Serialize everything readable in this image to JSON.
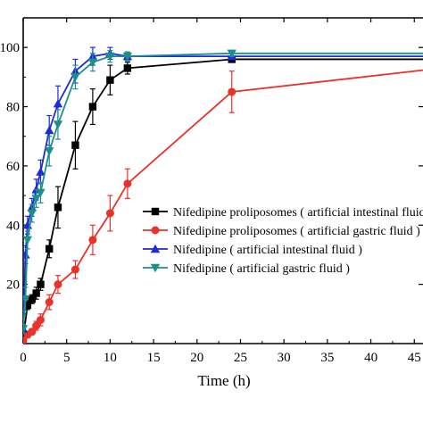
{
  "chart_data": {
    "type": "line",
    "xlabel": "Time (h)",
    "ylabel": "",
    "xlim": [
      0,
      46
    ],
    "ylim": [
      0,
      110
    ],
    "x_ticks": [
      "0",
      "5",
      "10",
      "15",
      "20",
      "25",
      "30",
      "35",
      "40",
      "45"
    ],
    "y_ticks": [
      "20",
      "40",
      "60",
      "80",
      "100"
    ],
    "y_tick_values": [
      20,
      40,
      60,
      80,
      100
    ],
    "x_tick_values": [
      0,
      5,
      10,
      15,
      20,
      25,
      30,
      35,
      40,
      45
    ],
    "legend_position": "center-right",
    "series": [
      {
        "name": "Nifedipine proliposomes ( artificial intestinal fluid )",
        "color": "#000000",
        "marker": "square",
        "x": [
          0,
          0.5,
          1,
          1.5,
          2,
          3,
          4,
          6,
          8,
          10,
          12,
          24,
          48
        ],
        "y": [
          2,
          13,
          15,
          17,
          20,
          32,
          46,
          67,
          80,
          89,
          93,
          96,
          96
        ],
        "err": [
          1,
          1.5,
          1.5,
          2,
          2,
          3,
          7,
          8,
          6,
          5,
          2,
          1,
          1
        ]
      },
      {
        "name": "Nifedipine proliposomes ( artificial gastric fluid )",
        "color": "#e8322a",
        "marker": "circle",
        "x": [
          0,
          0.5,
          1,
          1.5,
          2,
          3,
          4,
          6,
          8,
          10,
          12,
          24,
          48
        ],
        "y": [
          1,
          3,
          4,
          6,
          8,
          14,
          20,
          25,
          35,
          44,
          54,
          85,
          93
        ],
        "err": [
          0.5,
          1,
          1,
          1.5,
          2,
          2.5,
          3,
          3,
          5,
          6,
          5,
          7,
          1
        ]
      },
      {
        "name": "Nifedipine ( artificial intestinal fluid )",
        "color": "#1f2bd6",
        "marker": "triangle-up",
        "x": [
          0,
          0.25,
          0.5,
          1,
          1.5,
          2,
          3,
          4,
          6,
          8,
          10,
          12,
          24,
          48
        ],
        "y": [
          5,
          30,
          40,
          46,
          52,
          58,
          72,
          81,
          92,
          97,
          98,
          97,
          97,
          97
        ],
        "err": [
          1.5,
          3,
          3,
          3,
          3.5,
          4,
          5,
          6,
          4,
          3,
          2,
          1.5,
          1,
          1
        ]
      },
      {
        "name": "Nifedipine ( artificial gastric fluid )",
        "color": "#1d8f8a",
        "marker": "triangle-down",
        "x": [
          0,
          0.25,
          0.5,
          1,
          1.5,
          2,
          3,
          4,
          6,
          8,
          10,
          12,
          24,
          48
        ],
        "y": [
          5,
          15,
          35,
          44,
          49,
          51,
          65,
          74,
          90,
          95,
          97,
          97,
          98,
          98
        ],
        "err": [
          1.5,
          4,
          3,
          3,
          3,
          3.5,
          5,
          5,
          4,
          3,
          2,
          1.5,
          1,
          1
        ]
      }
    ]
  }
}
